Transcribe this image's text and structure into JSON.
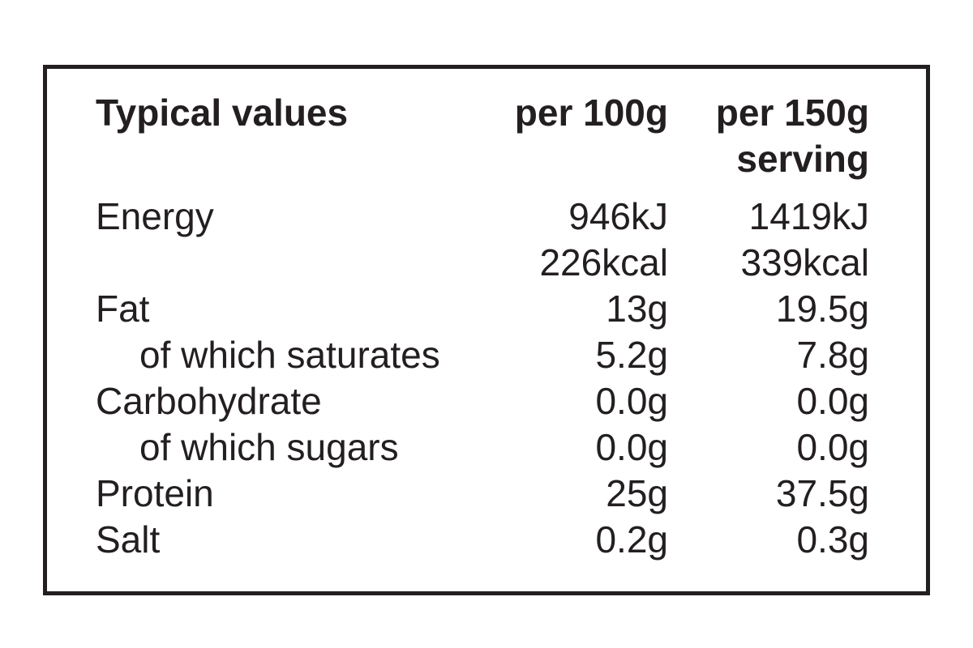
{
  "label_box": {
    "border_color": "#231f20",
    "text_color": "#231f20",
    "background": "#ffffff"
  },
  "header": {
    "col1": "Typical values",
    "col2": "per 100g",
    "col3_line1": "per 150g",
    "col3_line2": "serving"
  },
  "rows": [
    {
      "name": "Energy",
      "per100g": "946kJ",
      "per150g": "1419kJ"
    },
    {
      "name": "",
      "per100g": "226kcal",
      "per150g": "339kcal"
    },
    {
      "name": "Fat",
      "per100g": "13g",
      "per150g": "19.5g"
    },
    {
      "name": "of which saturates",
      "per100g": "5.2g",
      "per150g": "7.8g"
    },
    {
      "name": "Carbohydrate",
      "per100g": "0.0g",
      "per150g": "0.0g"
    },
    {
      "name": "of which sugars",
      "per100g": "0.0g",
      "per150g": "0.0g"
    },
    {
      "name": "Protein",
      "per100g": "25g",
      "per150g": "37.5g"
    },
    {
      "name": "Salt",
      "per100g": "0.2g",
      "per150g": "0.3g"
    }
  ]
}
